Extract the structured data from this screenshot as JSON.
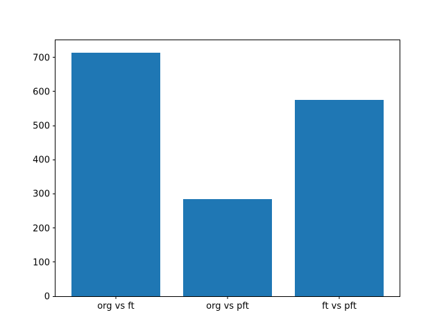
{
  "chart_data": {
    "type": "bar",
    "title": "",
    "xlabel": "",
    "ylabel": "",
    "categories": [
      "org vs ft",
      "org vs pft",
      "ft vs pft"
    ],
    "values": [
      714,
      284,
      576
    ],
    "yticks": [
      0,
      100,
      200,
      300,
      400,
      500,
      600,
      700
    ],
    "ylim": [
      0,
      750
    ],
    "xlim": [
      -0.54,
      2.54
    ],
    "bar_width": 0.8,
    "bar_color": "#1f77b4",
    "spine_color": "#000000",
    "background_color": "#ffffff",
    "grid": false,
    "legend": "none"
  }
}
